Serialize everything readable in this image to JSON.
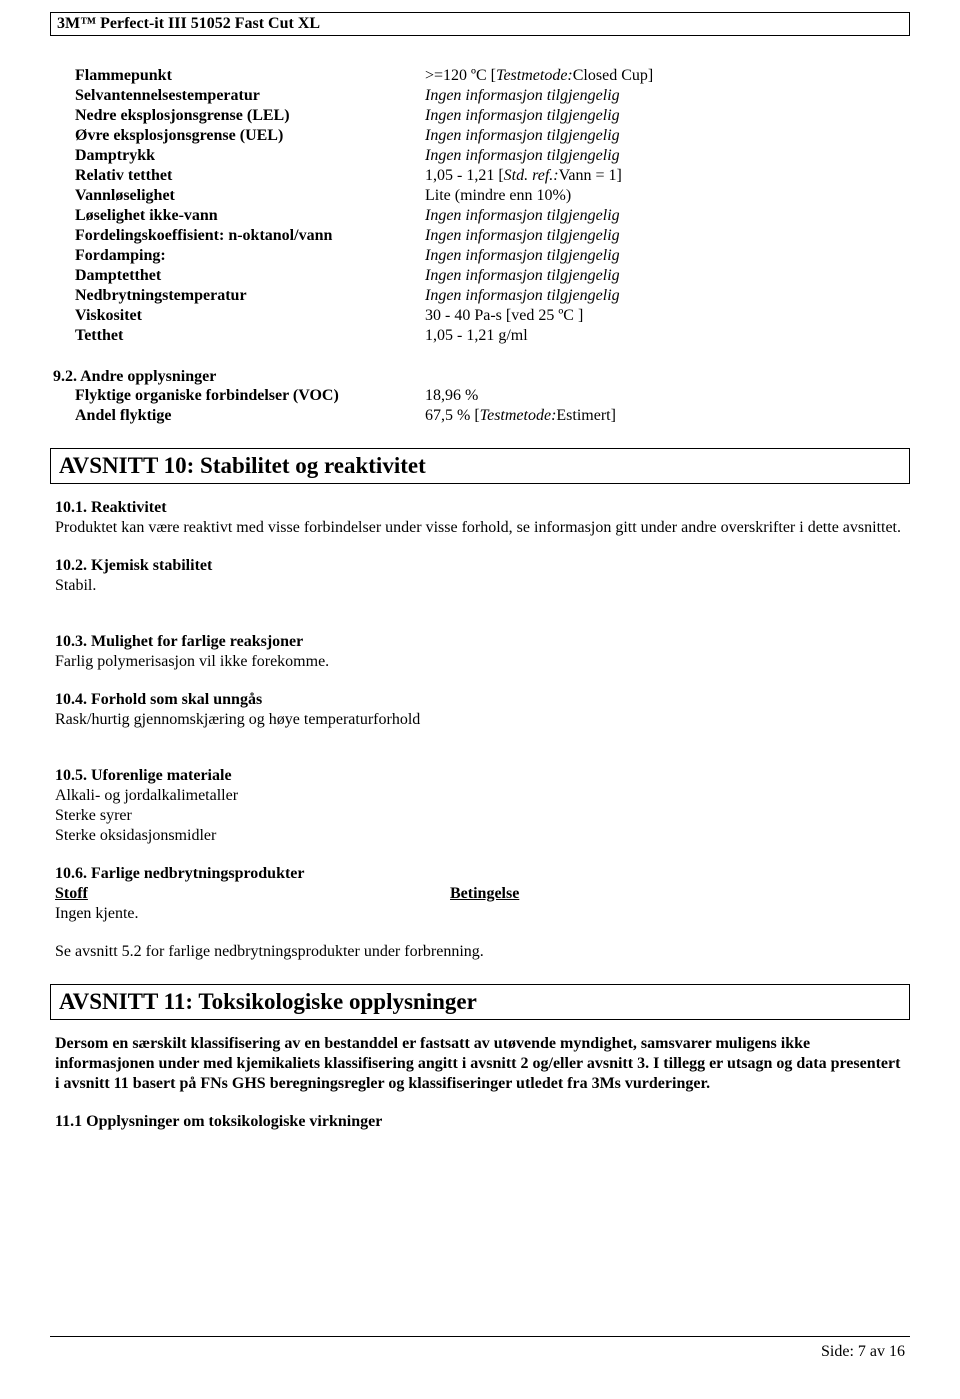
{
  "header": {
    "product": "3M™ Perfect-it III 51052 Fast Cut XL"
  },
  "properties": [
    {
      "label": "Flammepunkt",
      "value_html": ">=120 ºC [<i>Testmetode:</i>Closed Cup]"
    },
    {
      "label": "Selvantennelsestemperatur",
      "value_html": "<i>Ingen informasjon tilgjengelig</i>"
    },
    {
      "label": "Nedre eksplosjonsgrense (LEL)",
      "value_html": "<i>Ingen informasjon tilgjengelig</i>"
    },
    {
      "label": "Øvre eksplosjonsgrense (UEL)",
      "value_html": "<i>Ingen informasjon tilgjengelig</i>"
    },
    {
      "label": "Damptrykk",
      "value_html": "<i>Ingen informasjon tilgjengelig</i>"
    },
    {
      "label": "Relativ tetthet",
      "value_html": "1,05 - 1,21  [<i>Std. ref.:</i>Vann = 1]"
    },
    {
      "label": "Vannløselighet",
      "value_html": "Lite (mindre enn 10%)"
    },
    {
      "label": "Løselighet ikke-vann",
      "value_html": "<i>Ingen informasjon tilgjengelig</i>"
    },
    {
      "label": "Fordelingskoeffisient: n-oktanol/vann",
      "value_html": "<i>Ingen informasjon tilgjengelig</i>"
    },
    {
      "label": "Fordamping:",
      "value_html": "<i>Ingen informasjon tilgjengelig</i>"
    },
    {
      "label": "Damptetthet",
      "value_html": "<i>Ingen informasjon tilgjengelig</i>"
    },
    {
      "label": "Nedbrytningstemperatur",
      "value_html": "<i>Ingen informasjon tilgjengelig</i>"
    },
    {
      "label": "Viskositet",
      "value_html": "30 - 40 Pa-s [ved 25 ºC ]"
    },
    {
      "label": "Tetthet",
      "value_html": "1,05 - 1,21 g/ml"
    }
  ],
  "section92": {
    "title": "9.2. Andre opplysninger",
    "rows": [
      {
        "label": "Flyktige organiske forbindelser (VOC)",
        "value": "18,96 %"
      },
      {
        "label": "Andel flyktige",
        "value_html": "67,5 % [<i>Testmetode:</i>Estimert]"
      }
    ]
  },
  "avsnitt10": {
    "title": "AVSNITT 10: Stabilitet og reaktivitet",
    "s1_hdr": "10.1. Reaktivitet",
    "s1_txt": "Produktet kan være reaktivt med visse forbindelser under visse forhold, se informasjon gitt under andre overskrifter i dette avsnittet.",
    "s2_hdr": "10.2. Kjemisk stabilitet",
    "s2_txt": "Stabil.",
    "s3_hdr": "10.3. Mulighet for farlige reaksjoner",
    "s3_txt": "Farlig polymerisasjon vil ikke forekomme.",
    "s4_hdr": "10.4. Forhold som skal unngås",
    "s4_txt": "Rask/hurtig gjennomskjæring og  høye temperaturforhold",
    "s5_hdr": "10.5. Uforenlige materiale",
    "s5_lines": [
      "Alkali- og jordalkalimetaller",
      "Sterke syrer",
      "Sterke oksidasjonsmidler"
    ],
    "s6_hdr": "10.6. Farlige nedbrytningsprodukter",
    "s6_col1": "Stoff",
    "s6_col2": "Betingelse",
    "s6_row": " Ingen kjente.",
    "s6_txt": "Se avsnitt 5.2 for farlige nedbrytningsprodukter under forbrenning."
  },
  "avsnitt11": {
    "title": "AVSNITT 11: Toksikologiske opplysninger",
    "intro": "Dersom en særskilt klassifisering av en bestanddel er fastsatt av utøvende myndighet, samsvarer muligens ikke informasjonen under med kjemikaliets klassifisering angitt i avsnitt 2 og/eller avsnitt 3. I tillegg er utsagn og data presentert i avsnitt 11 basert på FNs GHS beregningsregler og klassifiseringer utledet fra 3Ms vurderinger.",
    "sub": "11.1 Opplysninger om toksikologiske virkninger"
  },
  "footer": {
    "prefix": "Side: ",
    "page": "7",
    "sep": " av  ",
    "total": "16"
  }
}
